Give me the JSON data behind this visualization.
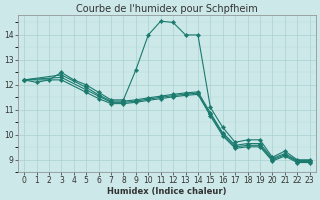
{
  "title": "Courbe de l'humidex pour Schpfheim",
  "xlabel": "Humidex (Indice chaleur)",
  "ylabel": "",
  "bg_color": "#cce8e8",
  "line_color": "#1a7a6e",
  "xlim": [
    -0.5,
    23.5
  ],
  "ylim": [
    8.5,
    14.8
  ],
  "xticks": [
    0,
    1,
    2,
    3,
    4,
    5,
    6,
    7,
    8,
    9,
    10,
    11,
    12,
    13,
    14,
    15,
    16,
    17,
    18,
    19,
    20,
    21,
    22,
    23
  ],
  "yticks": [
    9,
    10,
    11,
    12,
    13,
    14
  ],
  "lines": [
    {
      "x": [
        0,
        1,
        2,
        3,
        4,
        5,
        6,
        7,
        8,
        9,
        10,
        11,
        12,
        13,
        14,
        15,
        16,
        17,
        18,
        19,
        20,
        21,
        22,
        23
      ],
      "y": [
        12.2,
        12.1,
        12.2,
        12.5,
        12.2,
        12.0,
        11.7,
        11.4,
        11.4,
        12.6,
        14.0,
        14.55,
        14.5,
        14.0,
        14.0,
        11.1,
        10.3,
        9.7,
        9.8,
        9.8,
        9.1,
        9.35,
        9.0,
        9.0
      ]
    },
    {
      "x": [
        0,
        3,
        5,
        6,
        7,
        8,
        9,
        10,
        11,
        12,
        13,
        14,
        15,
        16,
        17,
        18,
        19,
        20,
        21,
        22,
        23
      ],
      "y": [
        12.2,
        12.4,
        11.9,
        11.6,
        11.35,
        11.35,
        11.4,
        11.48,
        11.55,
        11.62,
        11.68,
        11.72,
        10.88,
        10.08,
        9.58,
        9.65,
        9.65,
        9.05,
        9.25,
        8.97,
        8.97
      ]
    },
    {
      "x": [
        0,
        3,
        5,
        6,
        7,
        8,
        9,
        10,
        11,
        12,
        13,
        14,
        15,
        16,
        17,
        18,
        19,
        20,
        21,
        22,
        23
      ],
      "y": [
        12.2,
        12.3,
        11.8,
        11.55,
        11.3,
        11.3,
        11.35,
        11.43,
        11.5,
        11.57,
        11.63,
        11.67,
        10.82,
        10.02,
        9.52,
        9.58,
        9.58,
        9.0,
        9.2,
        8.93,
        8.93
      ]
    },
    {
      "x": [
        0,
        3,
        5,
        6,
        7,
        8,
        9,
        10,
        11,
        12,
        13,
        14,
        15,
        16,
        17,
        18,
        19,
        20,
        21,
        22,
        23
      ],
      "y": [
        12.2,
        12.2,
        11.7,
        11.45,
        11.25,
        11.25,
        11.3,
        11.38,
        11.45,
        11.52,
        11.58,
        11.62,
        10.76,
        9.96,
        9.46,
        9.52,
        9.52,
        8.95,
        9.15,
        8.89,
        8.89
      ]
    }
  ],
  "grid_color": "#aad0d0",
  "grid_minor_color": "#bbdddd",
  "title_color": "#333333",
  "tick_color": "#333333",
  "title_fontsize": 7,
  "xlabel_fontsize": 6,
  "tick_fontsize": 5.5
}
